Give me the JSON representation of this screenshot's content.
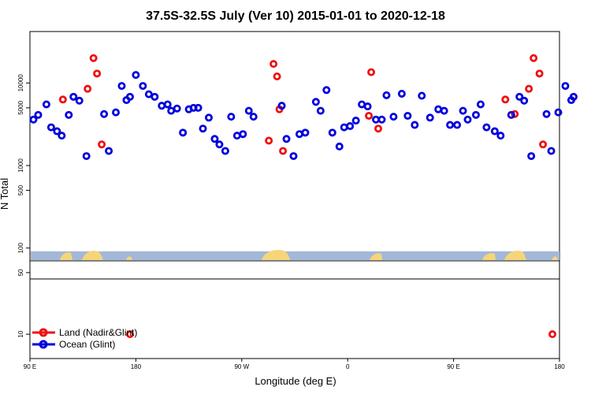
{
  "chart_data": {
    "type": "scatter",
    "title": "37.5S-32.5S July (Ver 10)   2015-01-01 to 2020-12-18",
    "xlabel": "Longitude (deg E)",
    "ylabel": "N Total",
    "x_ticks": [
      {
        "value": 90,
        "label": "90 E"
      },
      {
        "value": 180,
        "label": "180"
      },
      {
        "value": 270,
        "label": "90 W"
      },
      {
        "value": 360,
        "label": "0"
      },
      {
        "value": 450,
        "label": "90 E"
      },
      {
        "value": 540,
        "label": "180"
      }
    ],
    "xlim": [
      90,
      540
    ],
    "y_scale": "log",
    "y_ticks_upper": [
      {
        "value": 10000,
        "label": "10000"
      },
      {
        "value": 5000,
        "label": "5000"
      },
      {
        "value": 1000,
        "label": "1000"
      },
      {
        "value": 500,
        "label": "500"
      },
      {
        "value": 100,
        "label": "100"
      }
    ],
    "y_ticks_lower": [
      {
        "value": 50,
        "label": "50"
      },
      {
        "value": 10,
        "label": "10"
      }
    ],
    "ylim_upper": [
      70,
      42000
    ],
    "ylim_lower": [
      5.3,
      68
    ],
    "legend_position": "bottom-left",
    "colors": {
      "land": "#ee1111",
      "ocean": "#0000dd",
      "ocean_strip": "#a3b8d8",
      "land_strip": "#f5d57a"
    },
    "series": [
      {
        "name": "Land (Nadir&Glint)",
        "color": "#ee1111",
        "points": [
          [
            118,
            6300
          ],
          [
            139,
            8500
          ],
          [
            144,
            20000
          ],
          [
            147,
            13000
          ],
          [
            151,
            1800
          ],
          [
            293,
            2000
          ],
          [
            297,
            17000
          ],
          [
            300,
            12000
          ],
          [
            302,
            4800
          ],
          [
            305,
            1500
          ],
          [
            378,
            4000
          ],
          [
            380,
            13500
          ],
          [
            386,
            2800
          ],
          [
            494,
            6300
          ],
          [
            502,
            4200
          ],
          [
            514,
            8500
          ],
          [
            518,
            20000
          ],
          [
            523,
            13000
          ],
          [
            526,
            1800
          ],
          [
            175,
            10
          ],
          [
            534,
            10
          ]
        ]
      },
      {
        "name": "Ocean (Glint)",
        "color": "#0000dd",
        "points": [
          [
            93,
            3600
          ],
          [
            97,
            4100
          ],
          [
            104,
            5500
          ],
          [
            108,
            2900
          ],
          [
            113,
            2600
          ],
          [
            117,
            2300
          ],
          [
            123,
            4100
          ],
          [
            127,
            6800
          ],
          [
            132,
            6100
          ],
          [
            138,
            1300
          ],
          [
            153,
            4200
          ],
          [
            157,
            1500
          ],
          [
            163,
            4400
          ],
          [
            168,
            9200
          ],
          [
            172,
            6200
          ],
          [
            175,
            6800
          ],
          [
            180,
            12500
          ],
          [
            186,
            9200
          ],
          [
            191,
            7300
          ],
          [
            196,
            6800
          ],
          [
            202,
            5300
          ],
          [
            207,
            5500
          ],
          [
            210,
            4600
          ],
          [
            215,
            4900
          ],
          [
            220,
            2500
          ],
          [
            225,
            4800
          ],
          [
            229,
            5000
          ],
          [
            233,
            5000
          ],
          [
            237,
            2800
          ],
          [
            242,
            3800
          ],
          [
            247,
            2100
          ],
          [
            251,
            1800
          ],
          [
            256,
            1500
          ],
          [
            261,
            3900
          ],
          [
            266,
            2300
          ],
          [
            271,
            2400
          ],
          [
            276,
            4600
          ],
          [
            280,
            3900
          ],
          [
            304,
            5300
          ],
          [
            308,
            2100
          ],
          [
            314,
            1300
          ],
          [
            319,
            2400
          ],
          [
            324,
            2500
          ],
          [
            333,
            5900
          ],
          [
            337,
            4600
          ],
          [
            342,
            8200
          ],
          [
            347,
            2500
          ],
          [
            353,
            1700
          ],
          [
            357,
            2900
          ],
          [
            362,
            3000
          ],
          [
            367,
            3500
          ],
          [
            372,
            5500
          ],
          [
            377,
            5200
          ],
          [
            384,
            3600
          ],
          [
            389,
            3600
          ],
          [
            393,
            7100
          ],
          [
            399,
            3900
          ],
          [
            406,
            7400
          ],
          [
            411,
            4000
          ],
          [
            417,
            3100
          ],
          [
            423,
            7000
          ],
          [
            430,
            3800
          ],
          [
            437,
            4800
          ],
          [
            442,
            4600
          ],
          [
            447,
            3100
          ],
          [
            453,
            3100
          ],
          [
            458,
            4600
          ],
          [
            462,
            3600
          ],
          [
            469,
            4100
          ],
          [
            473,
            5500
          ],
          [
            478,
            2900
          ],
          [
            485,
            2600
          ],
          [
            490,
            2300
          ],
          [
            499,
            4100
          ],
          [
            506,
            6800
          ],
          [
            510,
            6100
          ],
          [
            516,
            1300
          ],
          [
            529,
            4200
          ],
          [
            533,
            1500
          ],
          [
            539,
            4400
          ],
          [
            545,
            9200
          ],
          [
            550,
            6200
          ],
          [
            552,
            6800
          ]
        ]
      }
    ]
  }
}
